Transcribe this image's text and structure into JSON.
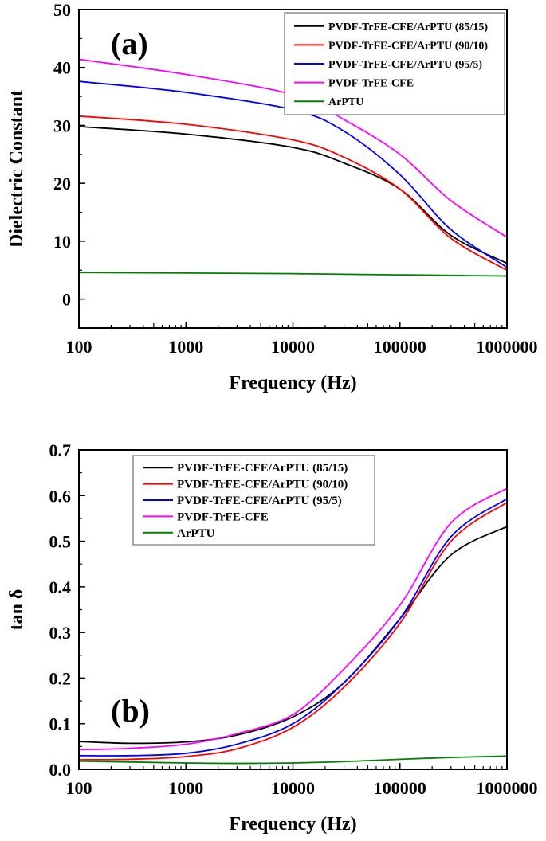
{
  "chart_data": [
    {
      "type": "line",
      "panel_label": "(a)",
      "xlabel": "Frequency (Hz)",
      "ylabel": "Dielectric Constant",
      "xscale": "log",
      "xlim": [
        100,
        1000000
      ],
      "ylim": [
        -5,
        50
      ],
      "xticks": [
        "100",
        "1000",
        "10000",
        "100000",
        "1000000"
      ],
      "yticks": [
        "0",
        "10",
        "20",
        "30",
        "40",
        "50"
      ],
      "legend_placement": "top-right",
      "grid": false,
      "x": [
        100,
        1000,
        10000,
        30000,
        100000,
        300000,
        1000000
      ],
      "series": [
        {
          "name": "PVDF-TrFE-CFE/ArPTU (85/15)",
          "color": "#000000",
          "values": [
            29.8,
            28.5,
            26.2,
            23.5,
            19.0,
            11.0,
            6.2
          ]
        },
        {
          "name": "PVDF-TrFE-CFE/ArPTU (90/10)",
          "color": "#ff0000",
          "values": [
            31.6,
            30.2,
            27.5,
            24.5,
            19.0,
            10.5,
            5.0
          ]
        },
        {
          "name": "PVDF-TrFE-CFE/ArPTU (95/5)",
          "color": "#0000ff",
          "values": [
            37.6,
            35.7,
            32.7,
            29.0,
            21.5,
            12.0,
            5.5
          ]
        },
        {
          "name": "PVDF-TrFE-CFE",
          "color": "#ff00ff",
          "values": [
            41.4,
            38.8,
            35.3,
            31.0,
            25.0,
            17.0,
            10.7
          ]
        },
        {
          "name": "ArPTU",
          "color": "#008000",
          "values": [
            4.6,
            4.5,
            4.4,
            4.3,
            4.2,
            4.1,
            4.0
          ]
        }
      ]
    },
    {
      "type": "line",
      "panel_label": "(b)",
      "xlabel": "Frequency (Hz)",
      "ylabel": "tan δ",
      "xscale": "log",
      "xlim": [
        100,
        1000000
      ],
      "ylim": [
        0,
        0.7
      ],
      "xticks": [
        "100",
        "1000",
        "10000",
        "100000",
        "1000000"
      ],
      "yticks": [
        "0.0",
        "0.1",
        "0.2",
        "0.3",
        "0.4",
        "0.5",
        "0.6",
        "0.7"
      ],
      "legend_placement": "top-left",
      "grid": false,
      "x": [
        100,
        300,
        1000,
        3000,
        10000,
        30000,
        100000,
        300000,
        1000000
      ],
      "series": [
        {
          "name": "PVDF-TrFE-CFE/ArPTU (85/15)",
          "color": "#000000",
          "values": [
            0.061,
            0.057,
            0.06,
            0.075,
            0.115,
            0.19,
            0.33,
            0.47,
            0.532
          ]
        },
        {
          "name": "PVDF-TrFE-CFE/ArPTU (90/10)",
          "color": "#ff0000",
          "values": [
            0.021,
            0.022,
            0.028,
            0.045,
            0.092,
            0.18,
            0.32,
            0.5,
            0.585
          ]
        },
        {
          "name": "PVDF-TrFE-CFE/ArPTU (95/5)",
          "color": "#0000ff",
          "values": [
            0.03,
            0.03,
            0.035,
            0.055,
            0.1,
            0.19,
            0.33,
            0.51,
            0.593
          ]
        },
        {
          "name": "PVDF-TrFE-CFE",
          "color": "#ff00ff",
          "values": [
            0.043,
            0.046,
            0.055,
            0.078,
            0.12,
            0.22,
            0.36,
            0.54,
            0.616
          ]
        },
        {
          "name": "ArPTU",
          "color": "#008000",
          "values": [
            0.018,
            0.016,
            0.014,
            0.013,
            0.014,
            0.017,
            0.022,
            0.026,
            0.029
          ]
        }
      ]
    }
  ]
}
